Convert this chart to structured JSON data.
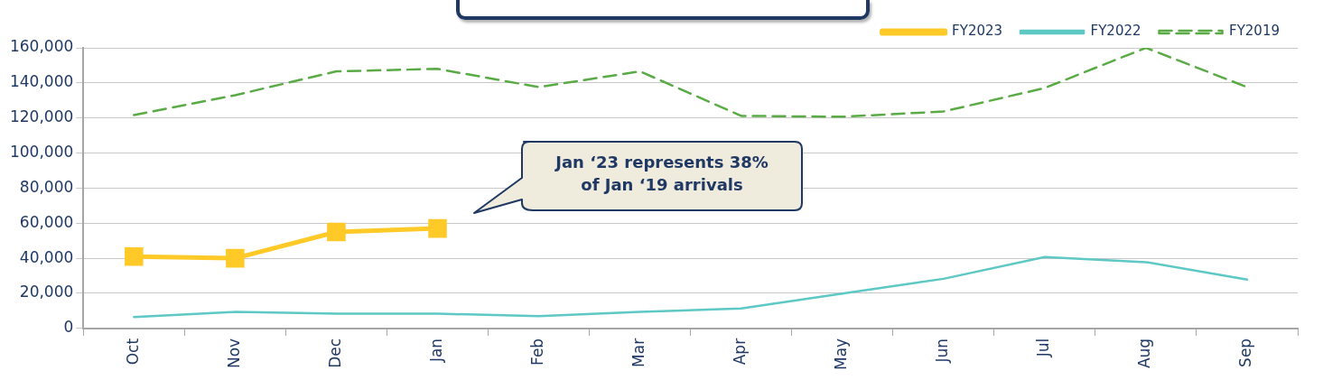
{
  "chart_data": {
    "type": "line",
    "categories": [
      "Oct",
      "Nov",
      "Dec",
      "Jan",
      "Feb",
      "Mar",
      "Apr",
      "May",
      "Jun",
      "Jul",
      "Aug",
      "Sep"
    ],
    "series": [
      {
        "name": "FY2023",
        "color": "#ffca28",
        "marker": "square",
        "line_style": "solid",
        "values": [
          41000,
          40000,
          55000,
          57000,
          null,
          null,
          null,
          null,
          null,
          null,
          null,
          null
        ]
      },
      {
        "name": "FY2022",
        "color": "#5ec8c4",
        "marker": "none",
        "line_style": "solid",
        "values": [
          6500,
          9400,
          8400,
          8400,
          7000,
          9400,
          11400,
          19900,
          28300,
          40700,
          37800,
          27800
        ]
      },
      {
        "name": "FY2019",
        "color": "#5aaa46",
        "marker": "none",
        "line_style": "dashed",
        "values": [
          121700,
          133000,
          146600,
          148000,
          137600,
          146600,
          121200,
          120700,
          123700,
          137100,
          160000,
          137600
        ]
      }
    ],
    "ylim": [
      0,
      160000
    ],
    "yticks": [
      0,
      {
        "value": 20000,
        "label": "20,000"
      },
      {
        "value": 40000,
        "label": "40,000"
      },
      {
        "value": 60000,
        "label": "60,000"
      },
      {
        "value": 80000,
        "label": "80,000"
      },
      {
        "value": 100000,
        "label": "100,000"
      },
      {
        "value": 120000,
        "label": "120,000"
      },
      {
        "value": 140000,
        "label": "140,000"
      },
      {
        "value": 160000,
        "label": "160,000"
      }
    ],
    "grid": "y",
    "legend": "top right",
    "annotations": [
      "Jan ‘23 represents 38%\nof Jan ‘19 arrivals"
    ]
  }
}
